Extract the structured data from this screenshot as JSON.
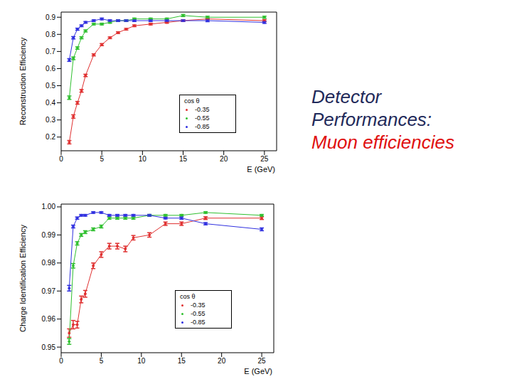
{
  "heading": {
    "title": "Detector Performances:",
    "subtitle": "Muon efficiencies"
  },
  "chart_data": [
    {
      "type": "line",
      "xlabel": "E (GeV)",
      "ylabel": "Reconstruction Efficiency",
      "legend_title": "cos θ",
      "legend": "center",
      "marker": "dot",
      "x": [
        1,
        1.5,
        2,
        2.5,
        3,
        4,
        5,
        6,
        7,
        8,
        9,
        11,
        13,
        15,
        18,
        25
      ],
      "xlim": [
        0,
        26.5
      ],
      "xticks": [
        0,
        5,
        10,
        15,
        20,
        25
      ],
      "ylim": [
        0.12,
        0.93
      ],
      "yticks": [
        0.2,
        0.3,
        0.4,
        0.5,
        0.6,
        0.7,
        0.8,
        0.9
      ],
      "series": [
        {
          "name": "-0.35",
          "color": "#e03030",
          "values": [
            0.17,
            0.32,
            0.4,
            0.47,
            0.56,
            0.68,
            0.74,
            0.78,
            0.81,
            0.83,
            0.85,
            0.86,
            0.87,
            0.88,
            0.89,
            0.88
          ],
          "errors": [
            0.01,
            0.01,
            0.008,
            0.008,
            0.007,
            0.006,
            0.006,
            0.005,
            0.005,
            0.005,
            0.005,
            0.005,
            0.005,
            0.005,
            0.006,
            0.006
          ]
        },
        {
          "name": "-0.55",
          "color": "#30c030",
          "values": [
            0.43,
            0.66,
            0.72,
            0.78,
            0.82,
            0.86,
            0.86,
            0.87,
            0.88,
            0.88,
            0.89,
            0.89,
            0.89,
            0.91,
            0.9,
            0.9
          ],
          "errors": [
            0.01,
            0.008,
            0.007,
            0.006,
            0.006,
            0.005,
            0.005,
            0.005,
            0.005,
            0.005,
            0.005,
            0.005,
            0.005,
            0.006,
            0.006,
            0.006
          ]
        },
        {
          "name": "-0.85",
          "color": "#3030e0",
          "values": [
            0.65,
            0.78,
            0.83,
            0.85,
            0.87,
            0.88,
            0.89,
            0.88,
            0.88,
            0.88,
            0.88,
            0.88,
            0.88,
            0.88,
            0.88,
            0.87
          ],
          "errors": [
            0.008,
            0.007,
            0.006,
            0.005,
            0.005,
            0.005,
            0.005,
            0.005,
            0.005,
            0.005,
            0.005,
            0.005,
            0.005,
            0.005,
            0.006,
            0.006
          ]
        }
      ]
    },
    {
      "type": "line",
      "xlabel": "E (GeV)",
      "ylabel": "Charge Identification Efficiency",
      "legend_title": "cos θ",
      "legend": "center",
      "marker": "dot",
      "x": [
        1,
        1.5,
        2,
        2.5,
        3,
        4,
        5,
        6,
        7,
        8,
        9,
        11,
        13,
        15,
        18,
        25
      ],
      "xlim": [
        0,
        26.5
      ],
      "xticks": [
        0,
        5,
        10,
        15,
        20,
        25
      ],
      "ylim": [
        0.948,
        1.001
      ],
      "yticks": [
        0.95,
        0.96,
        0.97,
        0.98,
        0.99,
        {
          "value": 1,
          "label": "1.00"
        }
      ],
      "series": [
        {
          "name": "-0.35",
          "color": "#e03030",
          "values": [
            0.955,
            0.958,
            0.958,
            0.967,
            0.969,
            0.979,
            0.983,
            0.986,
            0.986,
            0.985,
            0.989,
            0.99,
            0.994,
            0.994,
            0.996,
            0.996
          ],
          "errors": [
            0.0015,
            0.0015,
            0.0012,
            0.0012,
            0.0012,
            0.001,
            0.001,
            0.001,
            0.001,
            0.001,
            0.0008,
            0.0008,
            0.0006,
            0.0006,
            0.0005,
            0.0005
          ]
        },
        {
          "name": "-0.55",
          "color": "#30c030",
          "values": [
            0.952,
            0.979,
            0.987,
            0.99,
            0.991,
            0.992,
            0.993,
            0.996,
            0.996,
            0.996,
            0.996,
            0.997,
            0.997,
            0.997,
            0.998,
            0.997
          ],
          "errors": [
            0.001,
            0.0008,
            0.0006,
            0.0005,
            0.0005,
            0.0005,
            0.0005,
            0.0004,
            0.0004,
            0.0004,
            0.0004,
            0.0003,
            0.0003,
            0.0003,
            0.0003,
            0.0003
          ]
        },
        {
          "name": "-0.85",
          "color": "#3030e0",
          "values": [
            0.971,
            0.993,
            0.996,
            0.997,
            0.997,
            0.998,
            0.998,
            0.997,
            0.997,
            0.997,
            0.997,
            0.997,
            0.996,
            0.996,
            0.994,
            0.992
          ],
          "errors": [
            0.001,
            0.0005,
            0.0004,
            0.0003,
            0.0003,
            0.0003,
            0.0003,
            0.0003,
            0.0003,
            0.0003,
            0.0003,
            0.0003,
            0.0003,
            0.0004,
            0.0004,
            0.0005
          ]
        }
      ]
    }
  ]
}
